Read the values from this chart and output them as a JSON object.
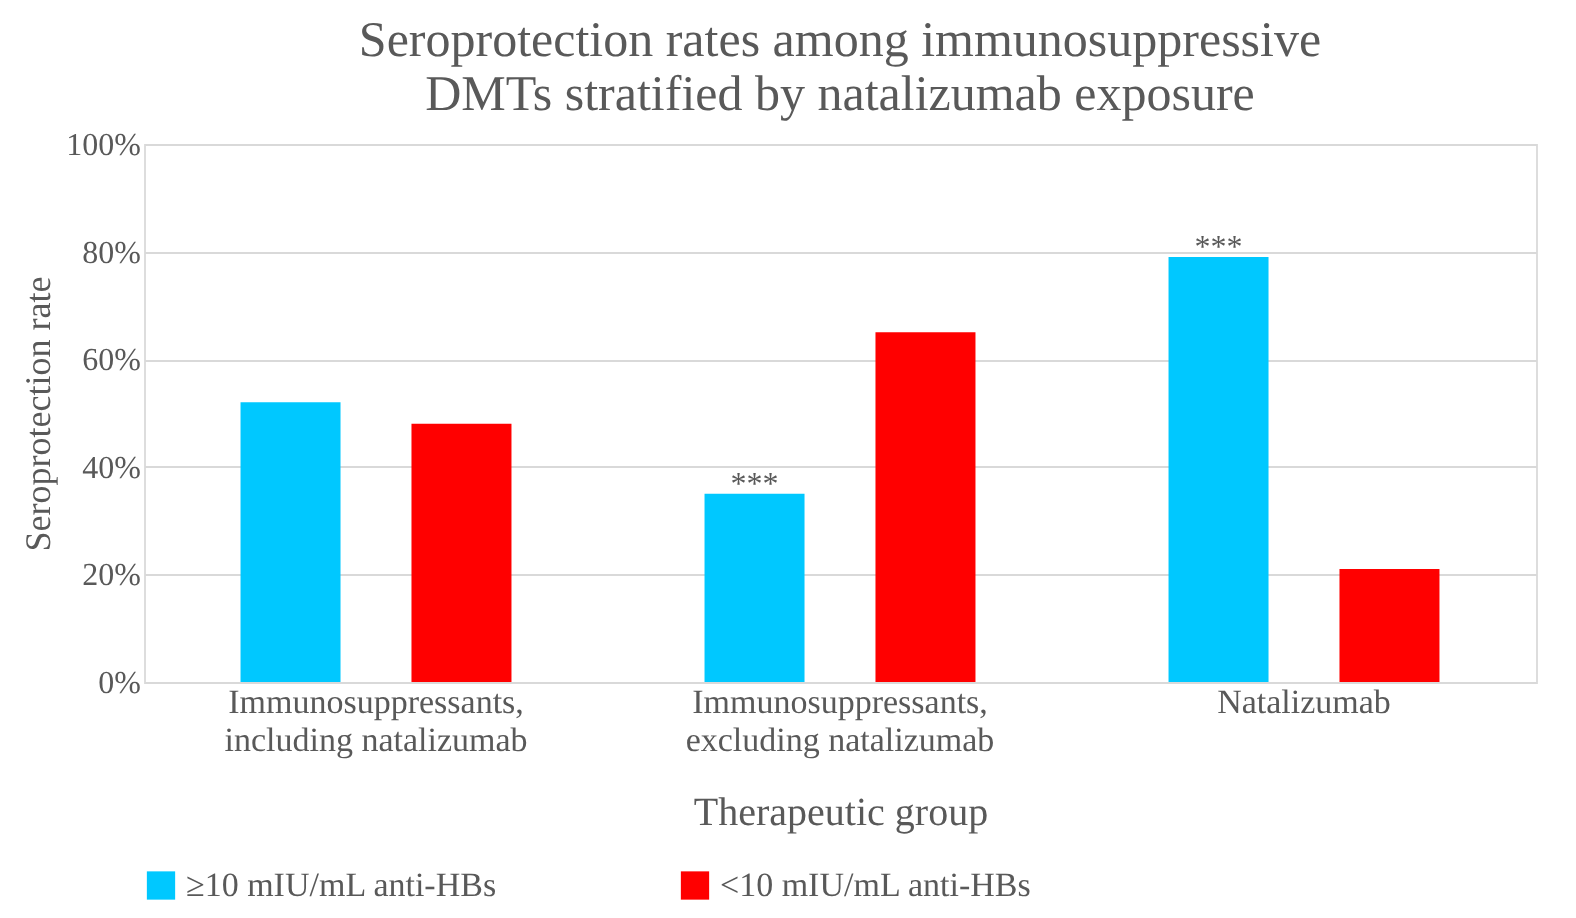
{
  "chart_data": {
    "type": "bar",
    "title": "Seroprotection rates among immunosuppressive DMTs stratified by natalizumab exposure",
    "xlabel": "Therapeutic group",
    "ylabel": "Seroprotection rate",
    "categories": [
      "Immunosuppressants, including natalizumab",
      "Immunosuppressants, excluding natalizumab",
      "Natalizumab"
    ],
    "series": [
      {
        "name": "≥10 mIU/mL anti-HBs",
        "color": "#00c8ff",
        "values": [
          52,
          35,
          79
        ],
        "value_labels": [
          null,
          "***",
          "***"
        ]
      },
      {
        "name": "<10 mIU/mL anti-HBs",
        "color": "#ff0000",
        "values": [
          48,
          65,
          21
        ]
      }
    ],
    "ylim": [
      0,
      100
    ],
    "yticks": [
      {
        "value": 0,
        "label": "0%"
      },
      {
        "value": 20,
        "label": "20%"
      },
      {
        "value": 40,
        "label": "40%"
      },
      {
        "value": 60,
        "label": "60%"
      },
      {
        "value": 80,
        "label": "80%"
      },
      {
        "value": 100,
        "label": "100%"
      }
    ],
    "grid": "y",
    "legend": "bottom"
  }
}
